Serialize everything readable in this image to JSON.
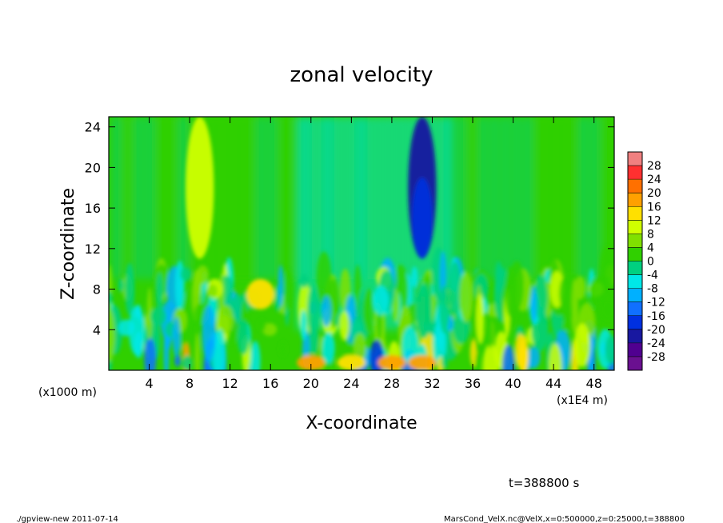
{
  "chart_data": {
    "type": "heatmap",
    "title": "zonal velocity",
    "xlabel": "X-coordinate",
    "ylabel": "Z-coordinate",
    "x_unit_note": "(x1E4 m)",
    "y_unit_note": "(x1000 m)",
    "xlim": [
      0,
      50
    ],
    "ylim": [
      0,
      25
    ],
    "x_ticks": [
      "4",
      "8",
      "12",
      "16",
      "20",
      "24",
      "28",
      "32",
      "36",
      "40",
      "44",
      "48"
    ],
    "y_ticks": [
      "4",
      "8",
      "12",
      "16",
      "20",
      "24"
    ],
    "colorbar_levels": [
      "28",
      "24",
      "20",
      "16",
      "12",
      "8",
      "4",
      "0",
      "-4",
      "-8",
      "-12",
      "-16",
      "-20",
      "-24",
      "-28"
    ],
    "colorbar_colors": [
      "#f08080",
      "#ff3030",
      "#ff7000",
      "#ffa000",
      "#ffe000",
      "#d0ff00",
      "#80e000",
      "#30d000",
      "#00d080",
      "#00e8e8",
      "#00b0ff",
      "#1070ff",
      "#0030e0",
      "#1818a0",
      "#500090",
      "#6a1090"
    ],
    "value_range": [
      -28,
      28
    ],
    "features": [
      {
        "x": 9,
        "z_min": 11,
        "z_max": 25,
        "value": 10
      },
      {
        "x": 31,
        "z_min": 11,
        "z_max": 25,
        "value": -20
      },
      {
        "x": 20,
        "z_min": 0,
        "z_max": 1.5,
        "value": 18
      },
      {
        "x": 24,
        "z_min": 0,
        "z_max": 1.5,
        "value": 16
      },
      {
        "x": 28,
        "z_min": 0,
        "z_max": 1.5,
        "value": 18
      },
      {
        "x": 31,
        "z_min": 0,
        "z_max": 1.5,
        "value": 18
      },
      {
        "x": 15,
        "z_min": 6,
        "z_max": 9,
        "value": 14
      }
    ],
    "annotation": "t=388800 s",
    "footer_left": "./gpview-new  2011-07-14",
    "footer_right": "MarsCond_VelX.nc@VelX,x=0:500000,z=0:25000,t=388800"
  }
}
